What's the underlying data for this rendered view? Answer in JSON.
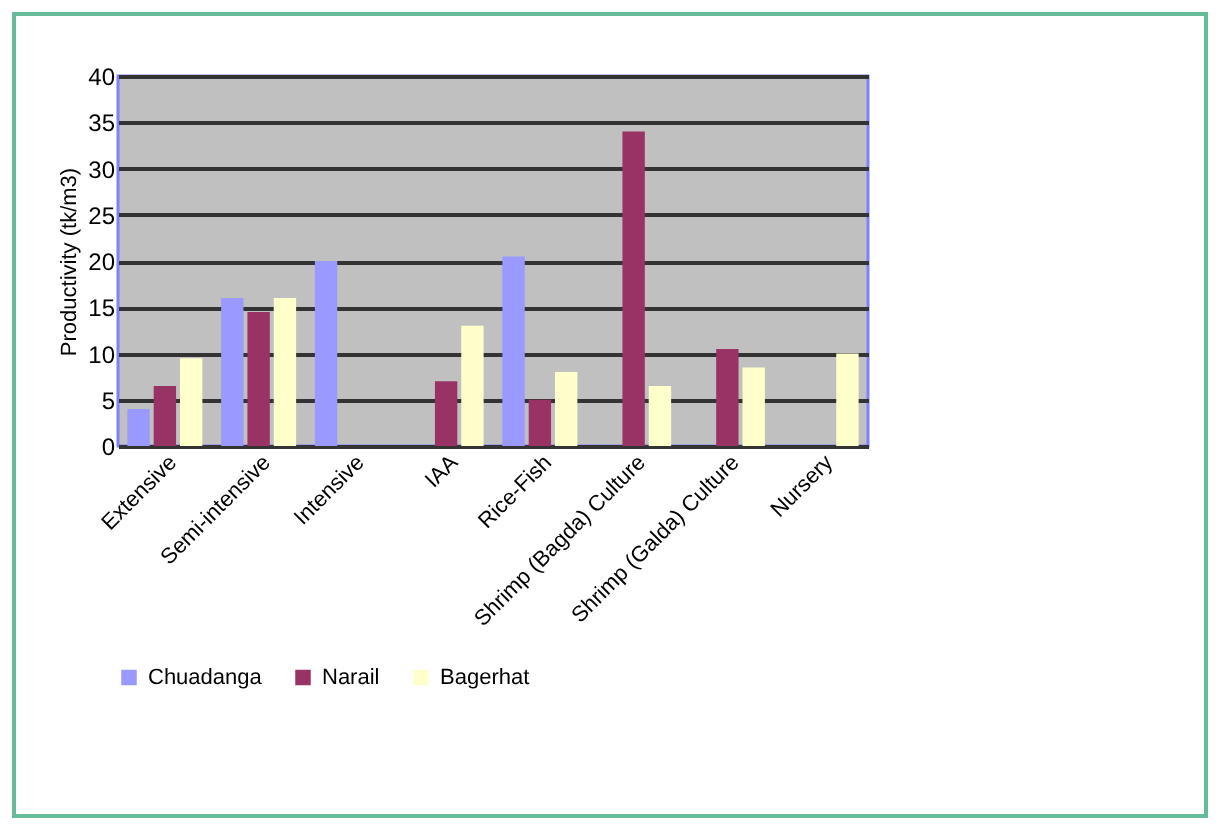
{
  "chart_data": {
    "type": "bar",
    "ylabel": "Productivity (tk/m3)",
    "categories": [
      "Extensive",
      "Semi-intensive",
      "Intensive",
      "IAA",
      "Rice-Fish",
      "Shrimp (Bagda) Culture",
      "Shrimp (Galda) Culture",
      "Nursery"
    ],
    "series": [
      {
        "name": "Chuadanga",
        "color": "#9999ff",
        "values": [
          4,
          16,
          20,
          null,
          20.5,
          null,
          null,
          null
        ]
      },
      {
        "name": "Narail",
        "color": "#993366",
        "values": [
          6.5,
          14.5,
          null,
          7,
          5,
          34,
          10.5,
          null
        ]
      },
      {
        "name": "Bagerhat",
        "color": "#ffffcc",
        "values": [
          9.5,
          16,
          null,
          13,
          8,
          6.5,
          8.5,
          10
        ]
      }
    ],
    "ylim": [
      0,
      40
    ],
    "yticks": [
      0,
      5,
      10,
      15,
      20,
      25,
      30,
      35,
      40
    ],
    "grid": "y",
    "legend": "bottom"
  }
}
